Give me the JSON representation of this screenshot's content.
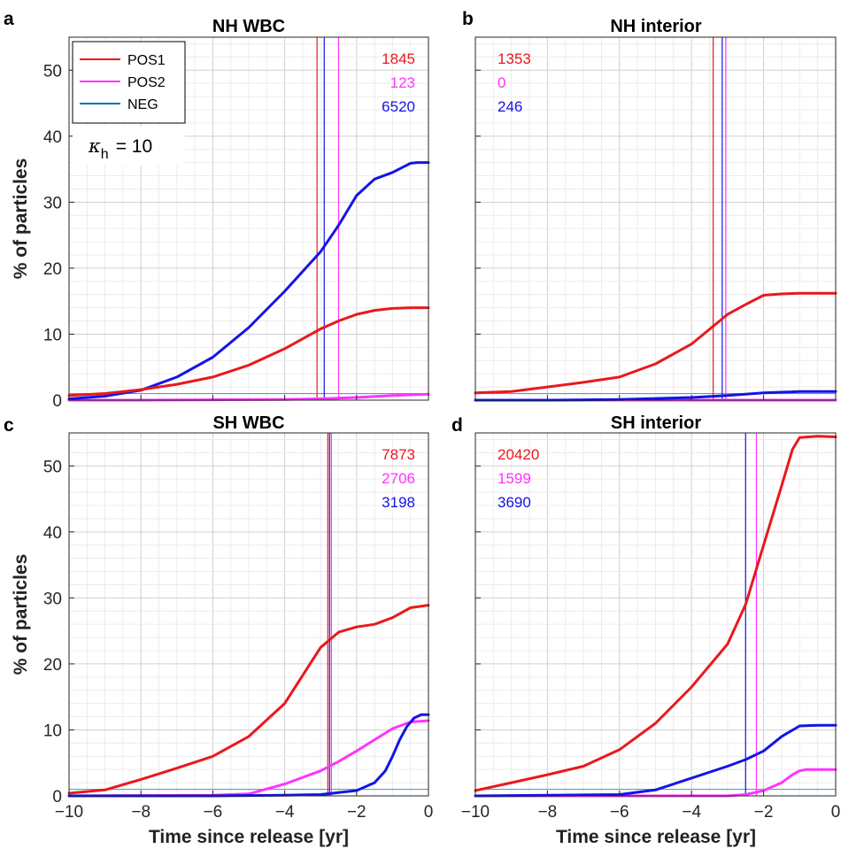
{
  "figure": {
    "xlabel": "Time since release [yr]",
    "ylabel": "% of particles",
    "colors": {
      "POS1": "#e8191c",
      "POS2": "#ff33ff",
      "NEG": "#1414e6",
      "baseline": "#4d9fd6"
    }
  },
  "legend": {
    "entries": [
      {
        "name": "POS1",
        "color": "#e8191c"
      },
      {
        "name": "POS2",
        "color": "#ff33ff"
      },
      {
        "name": "NEG",
        "color": "#0072bd"
      }
    ],
    "kappa_symbol": "κ",
    "kappa_sub": "h",
    "kappa_value": "= 10"
  },
  "chart_data": [
    {
      "type": "line",
      "panel": "a",
      "title": "NH WBC",
      "xlim": [
        -10,
        0
      ],
      "ylim": [
        0,
        55
      ],
      "xticks": [
        -10,
        -8,
        -6,
        -4,
        -2,
        0
      ],
      "yticks": [
        0,
        10,
        20,
        30,
        40,
        50
      ],
      "grid": true,
      "baseline": 1,
      "counts": [
        {
          "series": "POS1",
          "text": "1845"
        },
        {
          "series": "POS2",
          "text": "123"
        },
        {
          "series": "NEG",
          "text": "6520"
        }
      ],
      "vlines": [
        {
          "series": "POS1",
          "x": -3.1
        },
        {
          "series": "NEG",
          "x": -2.9
        },
        {
          "series": "POS2",
          "x": -2.5
        }
      ],
      "series": [
        {
          "name": "POS1",
          "x": [
            -10,
            -9,
            -8,
            -7,
            -6,
            -5,
            -4,
            -3,
            -2.5,
            -2,
            -1.5,
            -1,
            -0.5,
            0
          ],
          "y": [
            0.7,
            1.0,
            1.6,
            2.4,
            3.5,
            5.3,
            7.8,
            10.8,
            12.0,
            13.0,
            13.6,
            13.9,
            14.0,
            14.0
          ]
        },
        {
          "name": "POS2",
          "x": [
            -10,
            -8,
            -6,
            -4,
            -3,
            -2,
            -1,
            0
          ],
          "y": [
            0.0,
            0.0,
            0.05,
            0.1,
            0.2,
            0.4,
            0.7,
            0.9
          ]
        },
        {
          "name": "NEG",
          "x": [
            -10,
            -9,
            -8,
            -7,
            -6,
            -5,
            -4,
            -3,
            -2.5,
            -2,
            -1.5,
            -1,
            -0.5,
            -0.3,
            0
          ],
          "y": [
            0.2,
            0.6,
            1.5,
            3.5,
            6.5,
            11,
            16.5,
            22.5,
            26.5,
            31,
            33.5,
            34.5,
            35.9,
            36.0,
            36.0
          ]
        }
      ]
    },
    {
      "type": "line",
      "panel": "b",
      "title": "NH interior",
      "xlim": [
        -10,
        0
      ],
      "ylim": [
        0,
        55
      ],
      "xticks": [
        -10,
        -8,
        -6,
        -4,
        -2,
        0
      ],
      "yticks": [
        0,
        10,
        20,
        30,
        40,
        50
      ],
      "grid": true,
      "baseline": 1,
      "counts": [
        {
          "series": "POS1",
          "text": "1353"
        },
        {
          "series": "POS2",
          "text": "0"
        },
        {
          "series": "NEG",
          "text": "246"
        }
      ],
      "vlines": [
        {
          "series": "POS1",
          "x": -3.4
        },
        {
          "series": "NEG",
          "x": -3.15
        },
        {
          "series": "POS2",
          "x": -3.05
        }
      ],
      "series": [
        {
          "name": "POS1",
          "x": [
            -10,
            -9,
            -8,
            -7,
            -6,
            -5,
            -4,
            -3,
            -2.5,
            -2,
            -1.5,
            -1,
            -0.5,
            0
          ],
          "y": [
            1.1,
            1.3,
            2.0,
            2.7,
            3.5,
            5.5,
            8.5,
            13.0,
            14.5,
            15.9,
            16.1,
            16.2,
            16.2,
            16.2
          ]
        },
        {
          "name": "POS2",
          "x": [
            -10,
            -5,
            0
          ],
          "y": [
            0.0,
            0.0,
            0.0
          ]
        },
        {
          "name": "NEG",
          "x": [
            -10,
            -8,
            -6,
            -4,
            -3,
            -2,
            -1,
            0
          ],
          "y": [
            0.0,
            0.0,
            0.1,
            0.4,
            0.7,
            1.1,
            1.3,
            1.3
          ]
        }
      ]
    },
    {
      "type": "line",
      "panel": "c",
      "title": "SH WBC",
      "xlim": [
        -10,
        0
      ],
      "ylim": [
        0,
        55
      ],
      "xticks": [
        -10,
        -8,
        -6,
        -4,
        -2,
        0
      ],
      "yticks": [
        0,
        10,
        20,
        30,
        40,
        50
      ],
      "grid": true,
      "baseline": 1,
      "counts": [
        {
          "series": "POS1",
          "text": "7873"
        },
        {
          "series": "POS2",
          "text": "2706"
        },
        {
          "series": "NEG",
          "text": "3198"
        }
      ],
      "vlines": [
        {
          "series": "POS1",
          "x": -2.8
        },
        {
          "series": "NEG",
          "x": -2.75
        },
        {
          "series": "POS2",
          "x": -2.7
        }
      ],
      "series": [
        {
          "name": "POS1",
          "x": [
            -10,
            -9,
            -8,
            -7,
            -6,
            -5,
            -4,
            -3,
            -2.5,
            -2,
            -1.5,
            -1,
            -0.5,
            0
          ],
          "y": [
            0.4,
            0.9,
            2.5,
            4.2,
            6.0,
            9.0,
            14.0,
            22.5,
            24.8,
            25.6,
            26.0,
            27.0,
            28.5,
            28.9
          ]
        },
        {
          "name": "POS2",
          "x": [
            -10,
            -6,
            -5,
            -4,
            -3,
            -2.5,
            -2,
            -1.5,
            -1,
            -0.5,
            0
          ],
          "y": [
            0.0,
            0.1,
            0.3,
            1.8,
            3.8,
            5.2,
            6.8,
            8.5,
            10.2,
            11.2,
            11.4
          ]
        },
        {
          "name": "NEG",
          "x": [
            -10,
            -6,
            -4,
            -3,
            -2,
            -1.5,
            -1.2,
            -1,
            -0.8,
            -0.6,
            -0.4,
            -0.2,
            0
          ],
          "y": [
            0.0,
            0.0,
            0.1,
            0.2,
            0.8,
            2.0,
            3.8,
            6.0,
            8.5,
            10.5,
            11.8,
            12.3,
            12.3
          ]
        }
      ]
    },
    {
      "type": "line",
      "panel": "d",
      "title": "SH interior",
      "xlim": [
        -10,
        0
      ],
      "ylim": [
        0,
        55
      ],
      "xticks": [
        -10,
        -8,
        -6,
        -4,
        -2,
        0
      ],
      "yticks": [
        0,
        10,
        20,
        30,
        40,
        50
      ],
      "grid": true,
      "baseline": 1,
      "counts": [
        {
          "series": "POS1",
          "text": "20420"
        },
        {
          "series": "POS2",
          "text": "1599"
        },
        {
          "series": "NEG",
          "text": "3690"
        }
      ],
      "vlines": [
        {
          "series": "NEG",
          "x": -2.5
        },
        {
          "series": "POS2",
          "x": -2.2
        }
      ],
      "series": [
        {
          "name": "POS1",
          "x": [
            -10,
            -9,
            -8,
            -7,
            -6,
            -5,
            -4,
            -3,
            -2.5,
            -2,
            -1.5,
            -1.2,
            -1,
            -0.5,
            0
          ],
          "y": [
            0.8,
            2.0,
            3.2,
            4.5,
            7.0,
            11.0,
            16.5,
            23.0,
            29.0,
            38.0,
            47.0,
            52.5,
            54.3,
            54.5,
            54.4
          ]
        },
        {
          "name": "POS2",
          "x": [
            -10,
            -3,
            -2.5,
            -2,
            -1.5,
            -1.2,
            -1,
            -0.8,
            0
          ],
          "y": [
            0.0,
            0.0,
            0.2,
            0.8,
            2.0,
            3.2,
            3.8,
            4.0,
            4.0
          ]
        },
        {
          "name": "NEG",
          "x": [
            -10,
            -6,
            -5,
            -4,
            -3,
            -2.5,
            -2,
            -1.5,
            -1,
            -0.5,
            0
          ],
          "y": [
            0.0,
            0.2,
            0.9,
            2.7,
            4.5,
            5.5,
            6.8,
            9.0,
            10.6,
            10.7,
            10.7
          ]
        }
      ]
    }
  ]
}
